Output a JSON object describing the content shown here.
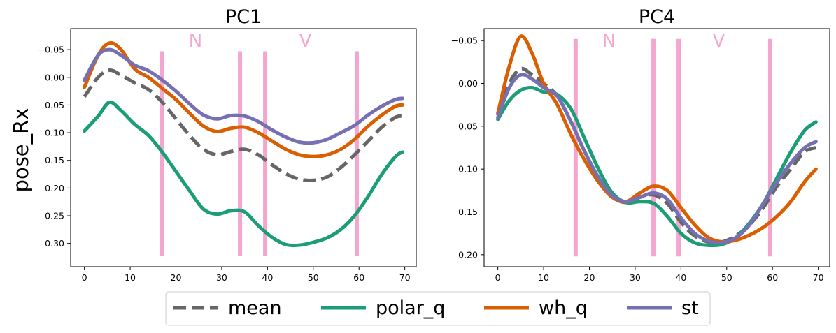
{
  "figure": {
    "ylabel": "pose_Rx",
    "colors": {
      "mean": "#666666",
      "polar_q": "#1b9e77",
      "wh_q": "#d95f02",
      "st": "#7570b3",
      "marker": "#f4a6cf"
    }
  },
  "legend": {
    "placement": "bottom-center",
    "entries": [
      {
        "key": "mean",
        "label": "mean",
        "style": "dashed"
      },
      {
        "key": "polar_q",
        "label": "polar_q",
        "style": "solid"
      },
      {
        "key": "wh_q",
        "label": "wh_q",
        "style": "solid"
      },
      {
        "key": "st",
        "label": "st",
        "style": "solid"
      }
    ]
  },
  "chart_data": [
    {
      "type": "line",
      "title": "PC1",
      "xlabel": "",
      "ylabel": "pose_Rx",
      "xlim": [
        -3,
        72.5
      ],
      "ylim": [
        0.342,
        -0.088
      ],
      "y_inverted": true,
      "grid": false,
      "xticks": [
        "0",
        "10",
        "20",
        "30",
        "40",
        "50",
        "60",
        "70"
      ],
      "yticks": [
        "−0.05",
        "0.00",
        "0.05",
        "0.10",
        "0.15",
        "0.20",
        "0.25",
        "0.30"
      ],
      "markers": [
        {
          "x": 17,
          "label": ""
        },
        {
          "x": 34,
          "label": "N"
        },
        {
          "x": 39.5,
          "label": ""
        },
        {
          "x": 59.5,
          "label": "V"
        }
      ],
      "marker_ylim": [
        0.323,
        -0.047
      ],
      "series": [
        {
          "name": "mean",
          "key": "mean",
          "x": [
            0,
            3,
            5.5,
            8,
            11,
            14,
            17,
            20,
            23,
            26,
            29,
            32,
            35,
            38,
            41,
            44,
            47,
            50,
            53,
            56,
            59,
            62,
            65,
            68,
            69.5
          ],
          "y": [
            0.035,
            0.0,
            -0.013,
            -0.004,
            0.01,
            0.022,
            0.045,
            0.075,
            0.105,
            0.13,
            0.14,
            0.134,
            0.13,
            0.14,
            0.158,
            0.174,
            0.184,
            0.186,
            0.18,
            0.163,
            0.14,
            0.115,
            0.09,
            0.072,
            0.07
          ]
        },
        {
          "name": "polar_q",
          "key": "polar_q",
          "x": [
            0,
            3,
            5.5,
            8,
            11,
            14,
            17,
            20,
            23,
            26,
            29,
            32,
            35,
            38,
            41,
            44,
            47,
            50,
            53,
            56,
            59,
            62,
            65,
            68,
            69.5
          ],
          "y": [
            0.097,
            0.07,
            0.045,
            0.06,
            0.085,
            0.105,
            0.135,
            0.17,
            0.205,
            0.238,
            0.247,
            0.241,
            0.243,
            0.268,
            0.289,
            0.302,
            0.303,
            0.298,
            0.29,
            0.275,
            0.25,
            0.215,
            0.175,
            0.143,
            0.135
          ]
        },
        {
          "name": "wh_q",
          "key": "wh_q",
          "x": [
            0,
            3,
            5.5,
            8,
            11,
            14,
            17,
            20,
            23,
            26,
            29,
            32,
            35,
            38,
            41,
            44,
            47,
            50,
            53,
            56,
            59,
            62,
            65,
            68,
            69.5
          ],
          "y": [
            0.018,
            -0.04,
            -0.062,
            -0.05,
            -0.015,
            0.0,
            0.02,
            0.04,
            0.065,
            0.088,
            0.098,
            0.092,
            0.09,
            0.1,
            0.115,
            0.13,
            0.14,
            0.143,
            0.14,
            0.13,
            0.112,
            0.088,
            0.068,
            0.052,
            0.05
          ]
        },
        {
          "name": "st",
          "key": "st",
          "x": [
            0,
            3,
            5.5,
            8,
            11,
            14,
            17,
            20,
            23,
            26,
            29,
            32,
            35,
            38,
            41,
            44,
            47,
            50,
            53,
            56,
            59,
            62,
            65,
            68,
            69.5
          ],
          "y": [
            0.005,
            -0.04,
            -0.05,
            -0.04,
            -0.022,
            -0.012,
            0.005,
            0.025,
            0.048,
            0.068,
            0.075,
            0.069,
            0.07,
            0.08,
            0.095,
            0.108,
            0.117,
            0.118,
            0.112,
            0.1,
            0.087,
            0.068,
            0.052,
            0.04,
            0.038
          ]
        }
      ]
    },
    {
      "type": "line",
      "title": "PC4",
      "xlabel": "",
      "ylabel": "",
      "xlim": [
        -3,
        72.5
      ],
      "ylim": [
        0.214,
        -0.064
      ],
      "y_inverted": true,
      "grid": false,
      "xticks": [
        "0",
        "10",
        "20",
        "30",
        "40",
        "50",
        "60",
        "70"
      ],
      "yticks": [
        "−0.05",
        "0.00",
        "0.05",
        "0.10",
        "0.15",
        "0.20"
      ],
      "markers": [
        {
          "x": 17,
          "label": ""
        },
        {
          "x": 34,
          "label": "N"
        },
        {
          "x": 39.5,
          "label": ""
        },
        {
          "x": 59.5,
          "label": "V"
        }
      ],
      "marker_ylim": [
        0.202,
        -0.052
      ],
      "series": [
        {
          "name": "mean",
          "key": "mean",
          "x": [
            0,
            2.5,
            5,
            7.5,
            10,
            13,
            16,
            19,
            22,
            25,
            28,
            31,
            34,
            37,
            40,
            43,
            46,
            49,
            52,
            55,
            58,
            61,
            64,
            67,
            69.5
          ],
          "y": [
            0.038,
            0.0,
            -0.017,
            -0.01,
            0.0,
            0.015,
            0.045,
            0.08,
            0.11,
            0.132,
            0.139,
            0.133,
            0.13,
            0.14,
            0.162,
            0.178,
            0.185,
            0.185,
            0.178,
            0.165,
            0.145,
            0.12,
            0.1,
            0.08,
            0.075
          ]
        },
        {
          "name": "polar_q",
          "key": "polar_q",
          "x": [
            0,
            2.5,
            5,
            7.5,
            10,
            13,
            16,
            19,
            22,
            25,
            28,
            31,
            34,
            37,
            40,
            43,
            46,
            49,
            52,
            55,
            58,
            61,
            64,
            67,
            69.5
          ],
          "y": [
            0.042,
            0.02,
            0.008,
            0.005,
            0.01,
            0.013,
            0.03,
            0.065,
            0.1,
            0.128,
            0.139,
            0.138,
            0.14,
            0.155,
            0.175,
            0.186,
            0.189,
            0.188,
            0.18,
            0.163,
            0.14,
            0.11,
            0.08,
            0.055,
            0.045
          ]
        },
        {
          "name": "wh_q",
          "key": "wh_q",
          "x": [
            0,
            2.5,
            5,
            7.5,
            10,
            13,
            16,
            19,
            22,
            25,
            28,
            31,
            34,
            37,
            40,
            43,
            46,
            49,
            52,
            55,
            58,
            61,
            64,
            67,
            69.5
          ],
          "y": [
            0.035,
            -0.02,
            -0.055,
            -0.035,
            0.0,
            0.025,
            0.06,
            0.09,
            0.115,
            0.133,
            0.138,
            0.128,
            0.12,
            0.125,
            0.145,
            0.165,
            0.18,
            0.185,
            0.183,
            0.177,
            0.168,
            0.155,
            0.138,
            0.115,
            0.1
          ]
        },
        {
          "name": "st",
          "key": "st",
          "x": [
            0,
            2.5,
            5,
            7.5,
            10,
            13,
            16,
            19,
            22,
            25,
            28,
            31,
            34,
            37,
            40,
            43,
            46,
            49,
            52,
            55,
            58,
            61,
            64,
            67,
            69.5
          ],
          "y": [
            0.04,
            0.005,
            -0.01,
            -0.005,
            0.005,
            0.015,
            0.045,
            0.08,
            0.11,
            0.131,
            0.138,
            0.133,
            0.128,
            0.135,
            0.157,
            0.175,
            0.184,
            0.186,
            0.18,
            0.165,
            0.14,
            0.115,
            0.093,
            0.075,
            0.068
          ]
        }
      ]
    }
  ]
}
